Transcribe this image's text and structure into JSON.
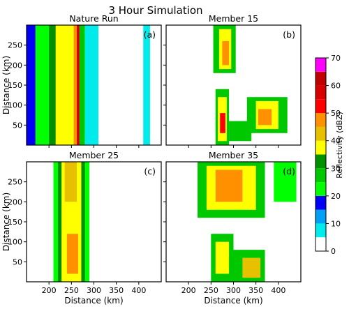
{
  "figure_title": "3 Hour Simulation",
  "colorbar": {
    "label": "Reflectivity (dBZ)",
    "ticks": [
      "0",
      "10",
      "20",
      "30",
      "40",
      "50",
      "60",
      "70"
    ],
    "levels": [
      0,
      5,
      10,
      15,
      20,
      25,
      30,
      35,
      40,
      45,
      50,
      55,
      60,
      65,
      70
    ],
    "colors": [
      "#ffffff",
      "#00ecec",
      "#01a0f6",
      "#0000f6",
      "#00ff00",
      "#00c800",
      "#009000",
      "#ffff00",
      "#e7c000",
      "#ff9000",
      "#ff0000",
      "#d60000",
      "#c00000",
      "#ff00ff",
      "#9955c9"
    ]
  },
  "chart_data": [
    {
      "type": "heatmap",
      "title": "Nature Run",
      "panel_label": "(a)",
      "xlabel": "",
      "ylabel": "Distance (km)",
      "xlim": [
        150,
        450
      ],
      "ylim": [
        0,
        300
      ],
      "x_ticks": [
        "200",
        "250",
        "300",
        "350",
        "400"
      ],
      "x_tick_values": [
        200,
        250,
        300,
        350,
        400
      ],
      "y_ticks": [
        "50",
        "100",
        "150",
        "200",
        "250"
      ],
      "y_tick_values": [
        50,
        100,
        150,
        200,
        250
      ],
      "show_xtick_labels": false,
      "show_ytick_labels": true,
      "cells": [
        {
          "x": [
            150,
            170
          ],
          "y": [
            0,
            300
          ],
          "dbz": 15
        },
        {
          "x": [
            170,
            200
          ],
          "y": [
            0,
            300
          ],
          "dbz": 20
        },
        {
          "x": [
            200,
            215
          ],
          "y": [
            0,
            300
          ],
          "dbz": 30
        },
        {
          "x": [
            215,
            255
          ],
          "y": [
            0,
            300
          ],
          "dbz": 35
        },
        {
          "x": [
            255,
            262
          ],
          "y": [
            0,
            300
          ],
          "dbz": 45
        },
        {
          "x": [
            262,
            268
          ],
          "y": [
            0,
            300
          ],
          "dbz": 55
        },
        {
          "x": [
            268,
            280
          ],
          "y": [
            0,
            300
          ],
          "dbz": 25
        },
        {
          "x": [
            280,
            310
          ],
          "y": [
            0,
            300
          ],
          "dbz": 5
        },
        {
          "x": [
            410,
            425
          ],
          "y": [
            0,
            300
          ],
          "dbz": 5
        }
      ]
    },
    {
      "type": "heatmap",
      "title": "Member 15",
      "panel_label": "(b)",
      "xlabel": "",
      "ylabel": "",
      "xlim": [
        150,
        450
      ],
      "ylim": [
        0,
        300
      ],
      "x_ticks": [
        "200",
        "250",
        "300",
        "350",
        "400"
      ],
      "x_tick_values": [
        200,
        250,
        300,
        350,
        400
      ],
      "y_ticks": [
        "50",
        "100",
        "150",
        "200",
        "250"
      ],
      "y_tick_values": [
        50,
        100,
        150,
        200,
        250
      ],
      "show_xtick_labels": false,
      "show_ytick_labels": false,
      "cells": [
        {
          "x": [
            255,
            305
          ],
          "y": [
            180,
            300
          ],
          "dbz": 25
        },
        {
          "x": [
            268,
            295
          ],
          "y": [
            190,
            290
          ],
          "dbz": 35
        },
        {
          "x": [
            275,
            290
          ],
          "y": [
            200,
            260
          ],
          "dbz": 45
        },
        {
          "x": [
            260,
            290
          ],
          "y": [
            0,
            140
          ],
          "dbz": 25
        },
        {
          "x": [
            265,
            285
          ],
          "y": [
            10,
            120
          ],
          "dbz": 35
        },
        {
          "x": [
            270,
            282
          ],
          "y": [
            30,
            80
          ],
          "dbz": 50
        },
        {
          "x": [
            290,
            340
          ],
          "y": [
            10,
            60
          ],
          "dbz": 25
        },
        {
          "x": [
            330,
            420
          ],
          "y": [
            30,
            120
          ],
          "dbz": 25
        },
        {
          "x": [
            350,
            400
          ],
          "y": [
            40,
            110
          ],
          "dbz": 35
        },
        {
          "x": [
            355,
            385
          ],
          "y": [
            50,
            90
          ],
          "dbz": 45
        }
      ]
    },
    {
      "type": "heatmap",
      "title": "Member 25",
      "panel_label": "(c)",
      "xlabel": "Distance (km)",
      "ylabel": "Distance (km)",
      "xlim": [
        150,
        450
      ],
      "ylim": [
        0,
        300
      ],
      "x_ticks": [
        "200",
        "250",
        "300",
        "350",
        "400"
      ],
      "x_tick_values": [
        200,
        250,
        300,
        350,
        400
      ],
      "y_ticks": [
        "50",
        "100",
        "150",
        "200",
        "250"
      ],
      "y_tick_values": [
        50,
        100,
        150,
        200,
        250
      ],
      "show_xtick_labels": true,
      "show_ytick_labels": true,
      "cells": [
        {
          "x": [
            210,
            290
          ],
          "y": [
            0,
            300
          ],
          "dbz": 20
        },
        {
          "x": [
            220,
            280
          ],
          "y": [
            0,
            300
          ],
          "dbz": 30
        },
        {
          "x": [
            228,
            272
          ],
          "y": [
            0,
            300
          ],
          "dbz": 35
        },
        {
          "x": [
            240,
            265
          ],
          "y": [
            20,
            120
          ],
          "dbz": 45
        },
        {
          "x": [
            235,
            262
          ],
          "y": [
            200,
            300
          ],
          "dbz": 40
        }
      ]
    },
    {
      "type": "heatmap",
      "title": "Member 35",
      "panel_label": "(d)",
      "xlabel": "Distance (km)",
      "ylabel": "",
      "xlim": [
        150,
        450
      ],
      "ylim": [
        0,
        300
      ],
      "x_ticks": [
        "200",
        "250",
        "300",
        "350",
        "400"
      ],
      "x_tick_values": [
        200,
        250,
        300,
        350,
        400
      ],
      "y_ticks": [
        "50",
        "100",
        "150",
        "200",
        "250"
      ],
      "y_tick_values": [
        50,
        100,
        150,
        200,
        250
      ],
      "show_xtick_labels": true,
      "show_ytick_labels": false,
      "cells": [
        {
          "x": [
            220,
            370
          ],
          "y": [
            160,
            300
          ],
          "dbz": 25
        },
        {
          "x": [
            240,
            350
          ],
          "y": [
            180,
            290
          ],
          "dbz": 35
        },
        {
          "x": [
            260,
            320
          ],
          "y": [
            200,
            280
          ],
          "dbz": 45
        },
        {
          "x": [
            250,
            300
          ],
          "y": [
            0,
            120
          ],
          "dbz": 25
        },
        {
          "x": [
            260,
            290
          ],
          "y": [
            20,
            100
          ],
          "dbz": 35
        },
        {
          "x": [
            300,
            370
          ],
          "y": [
            0,
            80
          ],
          "dbz": 25
        },
        {
          "x": [
            320,
            360
          ],
          "y": [
            10,
            60
          ],
          "dbz": 40
        },
        {
          "x": [
            390,
            440
          ],
          "y": [
            200,
            300
          ],
          "dbz": 20
        }
      ]
    }
  ]
}
